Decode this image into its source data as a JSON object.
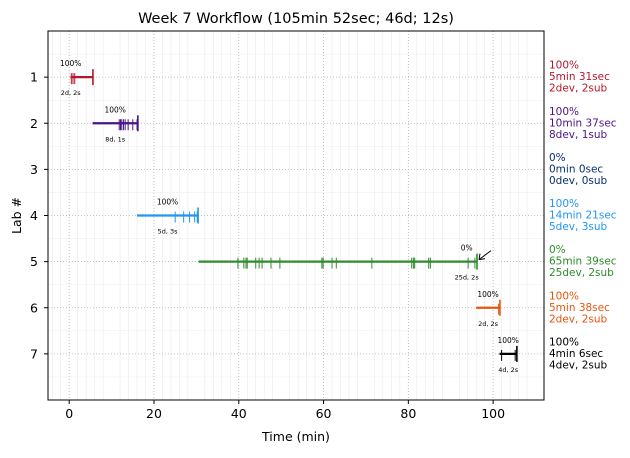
{
  "chart_data": {
    "type": "timeline",
    "title": "Week 7 Workflow (105min 52sec; 46d; 12s)",
    "xlabel": "Time (min)",
    "ylabel": "Lab #",
    "xlim": [
      -5,
      112
    ],
    "ylim": [
      0,
      8
    ],
    "xticks": [
      0,
      20,
      40,
      60,
      80,
      100
    ],
    "yticks": [
      1,
      2,
      3,
      4,
      5,
      6,
      7
    ],
    "grid": true,
    "series": [
      {
        "lab": 1,
        "color": "#b2182b",
        "start": 0.3,
        "end": 5.6,
        "events": [
          0.5,
          0.9,
          1.3,
          5.6
        ],
        "pct_label": "100%",
        "counts_label": "2d, 2s",
        "right_lines": [
          "100%",
          "5min 31sec",
          "2dev, 2sub"
        ]
      },
      {
        "lab": 2,
        "color": "#4a1486",
        "start": 5.5,
        "end": 16.2,
        "events": [
          11.8,
          12.1,
          12.4,
          12.8,
          13.2,
          13.9,
          15.0,
          16.0,
          16.2
        ],
        "pct_label": "100%",
        "counts_label": "8d, 1s",
        "right_lines": [
          "100%",
          "10min 37sec",
          "8dev, 1sub"
        ]
      },
      {
        "lab": 3,
        "color": "#08306b",
        "start": null,
        "end": null,
        "events": [],
        "pct_label": "",
        "counts_label": "",
        "right_lines": [
          "0%",
          "0min 0sec",
          "0dev, 0sub"
        ]
      },
      {
        "lab": 4,
        "color": "#2196f3",
        "start": 16.0,
        "end": 30.4,
        "events": [
          25.0,
          27.0,
          28.4,
          29.6,
          30.2
        ],
        "pct_label": "100%",
        "counts_label": "5d, 3s",
        "right_lines": [
          "100%",
          "14min 21sec",
          "5dev, 3sub"
        ]
      },
      {
        "lab": 5,
        "color": "#2e8b2e",
        "start": 30.5,
        "end": 96.2,
        "events": [
          39.8,
          41.2,
          41.7,
          42.0,
          44.0,
          44.8,
          45.5,
          47.6,
          49.7,
          59.6,
          59.9,
          62.0,
          63.0,
          71.4,
          80.8,
          81.2,
          81.5,
          84.8,
          85.2,
          94.1,
          95.7
        ],
        "pct_label": "0%",
        "counts_label": "25d, 2s",
        "right_lines": [
          "0%",
          "65min 39sec",
          "25dev, 2sub"
        ]
      },
      {
        "lab": 6,
        "color": "#e6550d",
        "start": 96.0,
        "end": 101.6,
        "events": [
          101.3,
          101.6
        ],
        "pct_label": "100%",
        "counts_label": "2d, 2s",
        "right_lines": [
          "100%",
          "5min 38sec",
          "2dev, 2sub"
        ]
      },
      {
        "lab": 7,
        "color": "#000000",
        "start": 101.5,
        "end": 105.6,
        "events": [
          102.0,
          105.2
        ],
        "pct_label": "100%",
        "counts_label": "4d, 2s",
        "right_lines": [
          "100%",
          "4min 6sec",
          "4dev, 2sub"
        ]
      }
    ]
  }
}
